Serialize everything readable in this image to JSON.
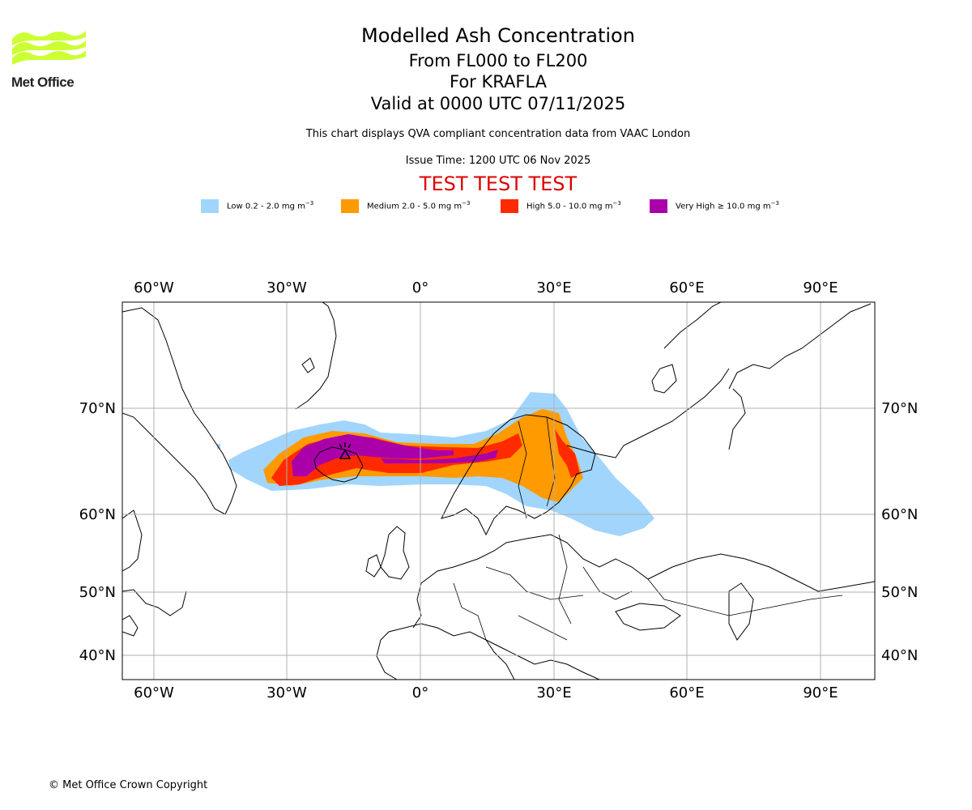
{
  "header": {
    "logo_text": "Met Office",
    "title": "Modelled Ash Concentration",
    "line2": "From FL000 to FL200",
    "line3": "For KRAFLA",
    "line4": "Valid at 0000 UTC 07/11/2025",
    "description": "This chart displays QVA compliant concentration data from VAAC London",
    "issue_time": "Issue Time: 1200 UTC 06 Nov 2025",
    "test_banner": "TEST TEST TEST"
  },
  "legend": [
    {
      "label": "Low 0.2 - 2.0 mg m",
      "color": "#a1d5fc"
    },
    {
      "label": "Medium 2.0 - 5.0 mg m",
      "color": "#ff9a00"
    },
    {
      "label": "High 5.0 - 10.0 mg m",
      "color": "#ff2a00"
    },
    {
      "label": "Very High ≥ 10.0 mg m",
      "color": "#aa00aa"
    }
  ],
  "legend_unit_exp": "−3",
  "map": {
    "lon_ticks": [
      "60°W",
      "30°W",
      "0°",
      "30°E",
      "60°E",
      "90°E"
    ],
    "lat_ticks": [
      "70°N",
      "60°N",
      "50°N",
      "40°N"
    ],
    "grid": true,
    "gridline_color": "#b0b0b0"
  },
  "footer": {
    "copyright": "© Met Office Crown Copyright"
  }
}
